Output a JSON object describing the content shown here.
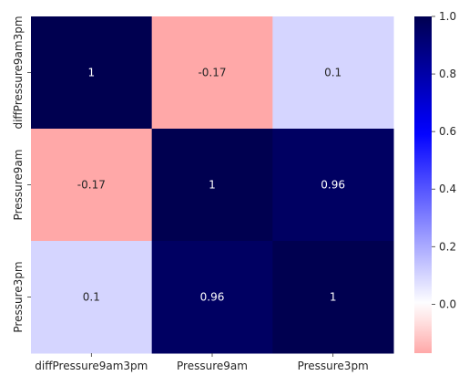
{
  "chart_data": {
    "type": "heatmap",
    "title": "",
    "xlabel": "",
    "ylabel": "",
    "x_categories": [
      "diffPressure9am3pm",
      "Pressure9am",
      "Pressure3pm"
    ],
    "y_categories": [
      "diffPressure9am3pm",
      "Pressure9am",
      "Pressure3pm"
    ],
    "values": [
      [
        1,
        -0.17,
        0.1
      ],
      [
        -0.17,
        1,
        0.96
      ],
      [
        0.1,
        0.96,
        1
      ]
    ],
    "cell_labels": [
      [
        "1",
        "-0.17",
        "0.1"
      ],
      [
        "-0.17",
        "1",
        "0.96"
      ],
      [
        "0.1",
        "0.96",
        "1"
      ]
    ],
    "colorbar": {
      "range": [
        -0.17,
        1.0
      ],
      "ticks": [
        0.0,
        0.2,
        0.4,
        0.6,
        0.8,
        1.0
      ],
      "tick_labels": [
        "0.0",
        "0.2",
        "0.4",
        "0.6",
        "0.8",
        "1.0"
      ],
      "colors": {
        "low": "#ffa8a8",
        "zero": "#ffffff",
        "mid": "#0000ff",
        "high": "#000050"
      }
    },
    "grid": false
  }
}
